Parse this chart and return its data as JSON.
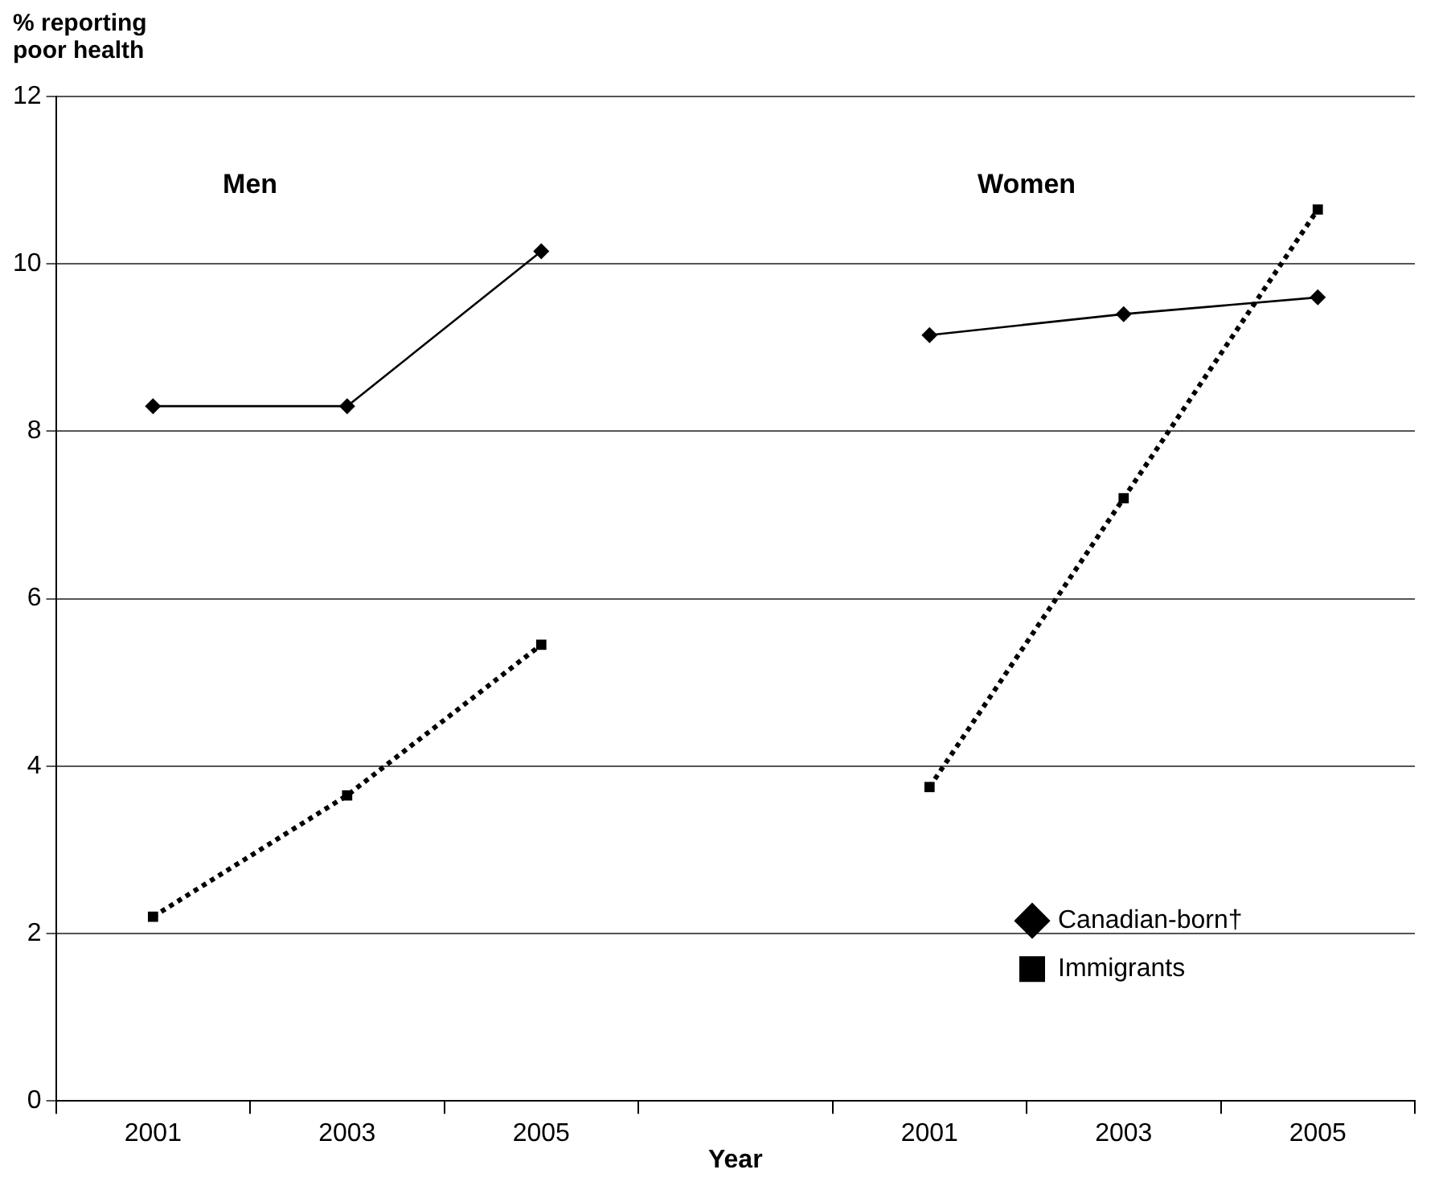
{
  "chart_data": {
    "type": "line",
    "ylabel": "% reporting poor health",
    "xlabel": "Year",
    "categories": [
      "2001",
      "2003",
      "2005",
      null,
      "2001",
      "2003",
      "2005"
    ],
    "series": [
      {
        "name": "Canadian-born†",
        "color": "#000000",
        "marker": "diamond",
        "line_style": "solid",
        "values": [
          8.3,
          8.3,
          10.15,
          null,
          9.15,
          9.4,
          9.6
        ]
      },
      {
        "name": "Immigrants",
        "color": "#000000",
        "marker": "square",
        "line_style": "dotted",
        "values": [
          2.2,
          3.65,
          5.45,
          null,
          3.75,
          7.2,
          10.65
        ]
      }
    ],
    "annotations": [
      "Men",
      "Women"
    ],
    "ylim": [
      0,
      12
    ],
    "yticks": [
      0,
      2,
      4,
      6,
      8,
      10,
      12
    ],
    "grid": "y",
    "legend": "bottom right"
  }
}
